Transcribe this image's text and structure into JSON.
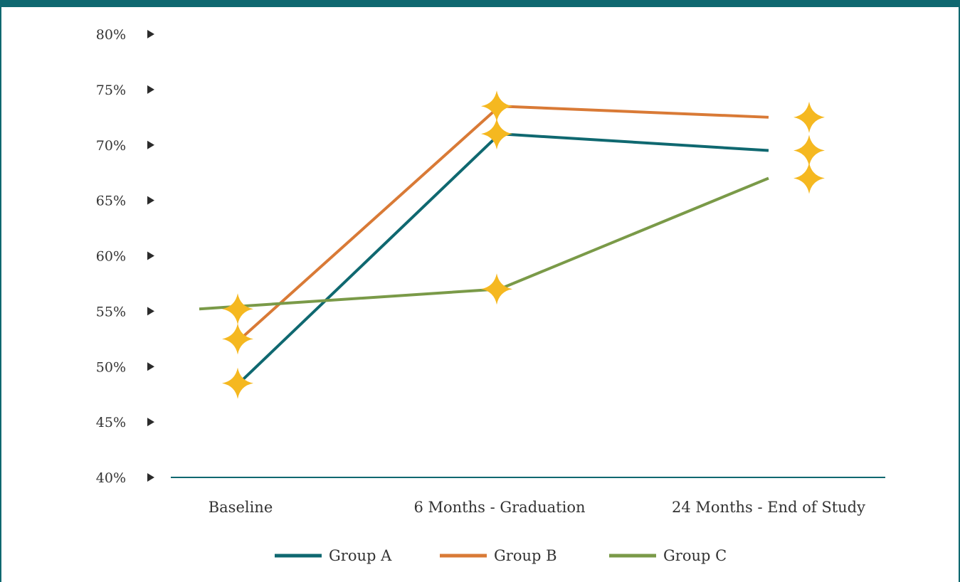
{
  "chart_data": {
    "type": "line",
    "categories": [
      "Baseline",
      "6 Months - Graduation",
      "24 Months - End of Study"
    ],
    "series": [
      {
        "name": "Group A",
        "color": "#0f6870",
        "values": [
          48.5,
          71.0,
          69.5
        ]
      },
      {
        "name": "Group B",
        "color": "#d97a36",
        "values": [
          52.5,
          73.5,
          72.5
        ]
      },
      {
        "name": "Group C",
        "color": "#7a9a48",
        "values": [
          55.2,
          57.0,
          67.0
        ]
      }
    ],
    "title": "",
    "xlabel": "",
    "ylabel": "",
    "ylim": [
      40,
      80
    ],
    "yticks": [
      "40%",
      "45%",
      "50%",
      "55%",
      "60%",
      "65%",
      "70%",
      "75%",
      "80%"
    ],
    "marker_color": "#f5b820",
    "marker_shape": "four-point-star",
    "grid": false,
    "legend": "bottom-center"
  }
}
